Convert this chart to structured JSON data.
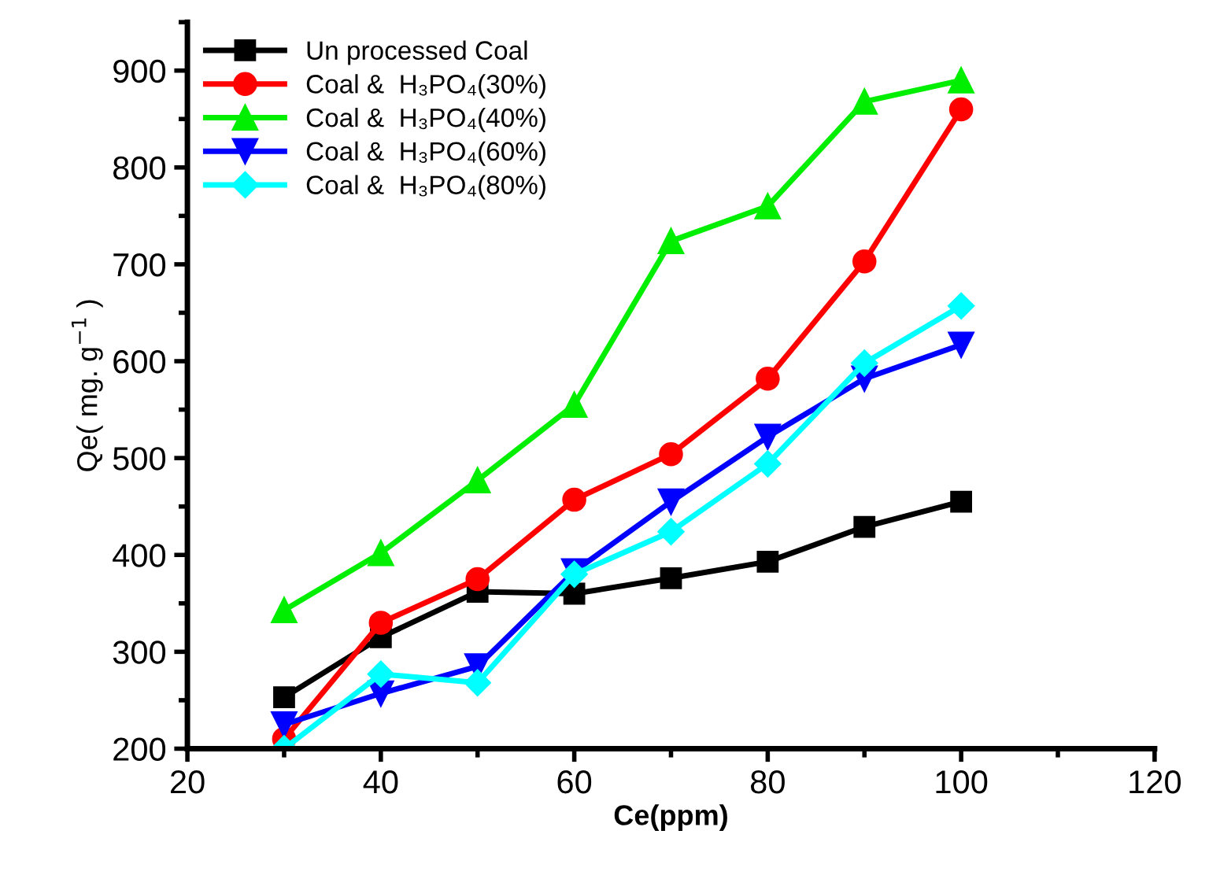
{
  "chart_data": {
    "type": "line",
    "xlabel": "Ce(ppm)",
    "ylabel": "Qe( mg. g$^{−1}$ )",
    "x": [
      30,
      40,
      50,
      60,
      70,
      80,
      90,
      100
    ],
    "xlim": [
      20,
      120
    ],
    "xticks": [
      20,
      {
        "value": 30,
        "label": null
      },
      40,
      {
        "value": 50,
        "label": null
      },
      60,
      {
        "value": 70,
        "label": null
      },
      80,
      {
        "value": 90,
        "label": null
      },
      100,
      {
        "value": 110,
        "label": null
      },
      120
    ],
    "ylim": [
      200,
      950
    ],
    "yticks": [
      200,
      {
        "value": 250,
        "label": null
      },
      300,
      {
        "value": 350,
        "label": null
      },
      400,
      {
        "value": 450,
        "label": null
      },
      500,
      {
        "value": 550,
        "label": null
      },
      600,
      {
        "value": 650,
        "label": null
      },
      700,
      {
        "value": 750,
        "label": null
      },
      800,
      {
        "value": 850,
        "label": null
      },
      900,
      {
        "value": 950,
        "label": null
      }
    ],
    "grid": false,
    "legend": "top left",
    "line_style": "solid",
    "series": [
      {
        "name": "Un processed Coal",
        "color": "#000000",
        "marker": "square",
        "values": [
          253,
          315,
          362,
          360,
          376,
          393,
          429,
          455
        ]
      },
      {
        "name": "Coal &  H₃PO₄(30%)",
        "color": "#ff0000",
        "marker": "circle",
        "values": [
          210,
          330,
          375,
          457,
          504,
          582,
          703,
          860
        ]
      },
      {
        "name": "Coal &  H₃PO₄(40%)",
        "color": "#00ee00",
        "marker": "triangle",
        "values": [
          343,
          402,
          477,
          555,
          724,
          760,
          868,
          890
        ]
      },
      {
        "name": "Coal &  H₃PO₄(60%)",
        "color": "#0000ff",
        "marker": "triangle_down",
        "values": [
          225,
          257,
          285,
          383,
          455,
          522,
          582,
          617
        ]
      },
      {
        "name": "Coal &  H₃PO₄(80%)",
        "color": "#00ffff",
        "marker": "diamond",
        "values": [
          200,
          277,
          268,
          380,
          424,
          494,
          598,
          657
        ]
      }
    ]
  }
}
